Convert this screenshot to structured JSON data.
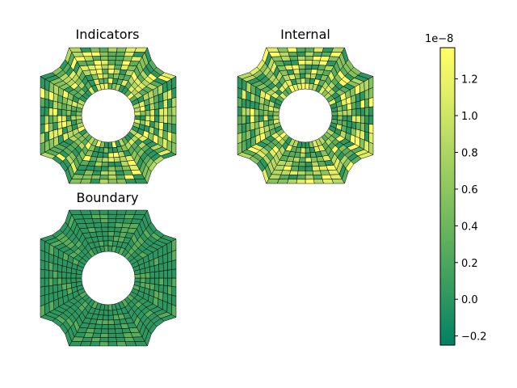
{
  "chart_data": {
    "type": "heatmap",
    "panels": [
      {
        "title": "Indicators",
        "pattern": "mixed"
      },
      {
        "title": "Internal",
        "pattern": "mixed"
      },
      {
        "title": "Boundary",
        "pattern": "low"
      }
    ],
    "colorbar": {
      "offset_label": "1e−8",
      "ticks": [
        1.2,
        1.0,
        0.8,
        0.6,
        0.4,
        0.2,
        0.0,
        -0.2
      ],
      "tick_labels": [
        "1.2",
        "1.0",
        "0.8",
        "0.6",
        "0.4",
        "0.2",
        "0.0",
        "−0.2"
      ],
      "range": [
        -0.25,
        1.37
      ],
      "colormap": [
        "#008066",
        "#2e9760",
        "#5aad5c",
        "#86c35e",
        "#b3d863",
        "#e0ee66",
        "#ffff66"
      ]
    }
  }
}
